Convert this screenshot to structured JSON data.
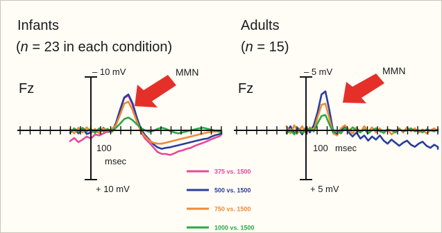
{
  "chart_data": [
    {
      "type": "line",
      "panel": "Infants",
      "title": "Infants",
      "subtitle_parts": [
        "(",
        "n",
        " = 23 in each condition)"
      ],
      "electrode": "Fz",
      "annotation": "MMN",
      "y_top_label": "– 10 mV",
      "y_bottom_label": "+ 10 mV",
      "x_tick_label": "100",
      "x_unit_label": "msec",
      "ylim": [
        10,
        -10
      ],
      "negative_up": true,
      "x": [
        -100,
        -80,
        -60,
        -40,
        -20,
        0,
        20,
        40,
        60,
        80,
        100,
        120,
        140,
        160,
        180,
        200,
        220,
        240,
        260,
        280,
        300,
        320,
        340,
        360,
        380,
        400,
        420,
        440,
        460,
        480,
        500,
        520,
        540,
        560,
        580,
        600,
        620,
        640,
        660,
        680,
        700
      ],
      "series": [
        {
          "name": "375 vs. 1500",
          "values": [
            2.1,
            1.5,
            2.3,
            1.8,
            1.2,
            1.6,
            0.8,
            1.0,
            0.6,
            0.2,
            0.0,
            -1.2,
            -3.8,
            -6.3,
            -6.8,
            -5.0,
            -2.2,
            0.3,
            1.6,
            2.4,
            3.3,
            4.2,
            4.6,
            4.6,
            4.8,
            4.5,
            4.1,
            3.9,
            3.6,
            3.4,
            3.0,
            2.7,
            2.4,
            2.1,
            1.7,
            1.4,
            1.1,
            0.8,
            0.6,
            0.4,
            0.5
          ]
        },
        {
          "name": "500 vs. 1500",
          "values": [
            0.5,
            -0.3,
            0.6,
            -0.4,
            0.7,
            0.4,
            0.0,
            0.5,
            -0.5,
            0.3,
            0.2,
            -1.4,
            -4.0,
            -6.4,
            -7.0,
            -5.3,
            -2.6,
            -0.3,
            0.9,
            1.8,
            2.7,
            3.3,
            3.6,
            3.4,
            3.3,
            3.1,
            2.9,
            2.7,
            2.5,
            2.3,
            2.1,
            1.9,
            1.7,
            1.6,
            1.2,
            0.9,
            0.7,
            0.6,
            0.5,
            0.4,
            0.6
          ]
        },
        {
          "name": "750 vs. 1500",
          "values": [
            -0.3,
            0.6,
            -0.5,
            0.4,
            -0.6,
            0.3,
            -0.3,
            0.6,
            -0.4,
            0.2,
            -0.3,
            -1.0,
            -3.0,
            -5.2,
            -5.6,
            -4.0,
            -1.8,
            0.2,
            1.2,
            2.0,
            2.4,
            2.6,
            2.6,
            2.4,
            2.2,
            2.0,
            1.8,
            1.6,
            1.4,
            1.2,
            1.0,
            0.8,
            0.6,
            0.4,
            0.3,
            0.2,
            0.1,
            0.2,
            0.1,
            0.0,
            0.1
          ]
        },
        {
          "name": "1000 vs. 1500",
          "values": [
            0.4,
            -0.4,
            0.3,
            -0.5,
            0.2,
            -0.3,
            0.5,
            -0.4,
            0.2,
            -0.3,
            0.3,
            -0.5,
            -1.3,
            -2.2,
            -2.5,
            -2.0,
            -1.2,
            -0.5,
            0.0,
            0.3,
            0.1,
            -0.3,
            -0.5,
            -0.3,
            0.1,
            0.4,
            0.6,
            0.4,
            0.2,
            0.0,
            -0.2,
            -0.4,
            -0.5,
            -0.3,
            -0.1,
            0.1,
            0.3,
            0.4,
            0.3,
            0.1,
            0.0
          ]
        }
      ]
    },
    {
      "type": "line",
      "panel": "Adults",
      "title": "Adults",
      "subtitle_parts": [
        "(",
        "n",
        " = 15)"
      ],
      "electrode": "Fz",
      "annotation": "MMN",
      "y_top_label": "– 5 mV",
      "y_bottom_label": "+ 5 mV",
      "x_tick_label": "100",
      "x_unit_label": "msec",
      "ylim": [
        5,
        -5
      ],
      "negative_up": true,
      "x": [
        -100,
        -80,
        -60,
        -40,
        -20,
        0,
        20,
        40,
        60,
        80,
        100,
        120,
        140,
        160,
        180,
        200,
        220,
        240,
        260,
        280,
        300,
        320,
        340,
        360,
        380,
        400,
        420,
        440,
        460,
        480,
        500,
        520,
        540,
        560,
        580,
        600,
        620,
        640,
        660,
        680,
        700
      ],
      "series": [
        {
          "name": "500 vs. 1500",
          "values": [
            0.2,
            -0.4,
            0.3,
            -0.2,
            0.4,
            -0.3,
            0.2,
            -0.5,
            -1.8,
            -3.5,
            -3.8,
            -2.0,
            0.1,
            0.4,
            0.0,
            -0.3,
            0.2,
            0.6,
            0.2,
            0.8,
            0.5,
            1.0,
            0.6,
            0.9,
            0.5,
            1.0,
            1.3,
            0.9,
            1.2,
            1.5,
            1.2,
            1.0,
            1.4,
            1.6,
            1.3,
            1.1,
            1.5,
            1.7,
            1.4,
            1.6,
            1.8
          ]
        },
        {
          "name": "750 vs. 1500",
          "values": [
            -0.4,
            0.3,
            -0.5,
            0.2,
            -0.4,
            0.3,
            -0.3,
            0.0,
            -1.3,
            -2.5,
            -2.6,
            -1.2,
            0.3,
            0.5,
            -0.2,
            -0.5,
            -0.1,
            0.3,
            -0.3,
            0.2,
            -0.4,
            0.1,
            -0.3,
            0.2,
            -0.2,
            0.3,
            -0.1,
            0.4,
            0.1,
            -0.2,
            0.2,
            -0.3,
            0.1,
            -0.2,
            0.2,
            -0.1,
            0.3,
            0.0,
            -0.2,
            0.1,
            0.0
          ]
        },
        {
          "name": "1000 vs. 1500",
          "values": [
            0.3,
            0.0,
            0.4,
            -0.1,
            0.2,
            0.1,
            -0.2,
            0.1,
            -0.7,
            -1.4,
            -1.5,
            -0.6,
            0.2,
            0.0,
            0.3,
            -0.2,
            0.1,
            -0.3,
            0.0,
            0.2,
            -0.1,
            0.3,
            0.0,
            -0.2,
            0.1,
            0.2,
            -0.1,
            0.0,
            0.2,
            -0.1,
            0.1,
            0.0,
            -0.2,
            0.1,
            0.0,
            0.2,
            -0.1,
            0.0,
            0.1,
            -0.1,
            0.0
          ]
        }
      ]
    }
  ],
  "legend": [
    {
      "label": "375 vs. 1500",
      "color": "#e8479a"
    },
    {
      "label": "500 vs. 1500",
      "color": "#2b3d9c"
    },
    {
      "label": "750 vs. 1500",
      "color": "#ee8a36"
    },
    {
      "label": "1000 vs. 1500",
      "color": "#2aa846"
    }
  ],
  "colors": {
    "375 vs. 1500": "#e8479a",
    "500 vs. 1500": "#2b3d9c",
    "750 vs. 1500": "#ee8a36",
    "1000 vs. 1500": "#2aa846",
    "arrow": "#e5302a",
    "axis": "#111111"
  },
  "icons": {
    "mmn_marker": "arrow-icon"
  }
}
